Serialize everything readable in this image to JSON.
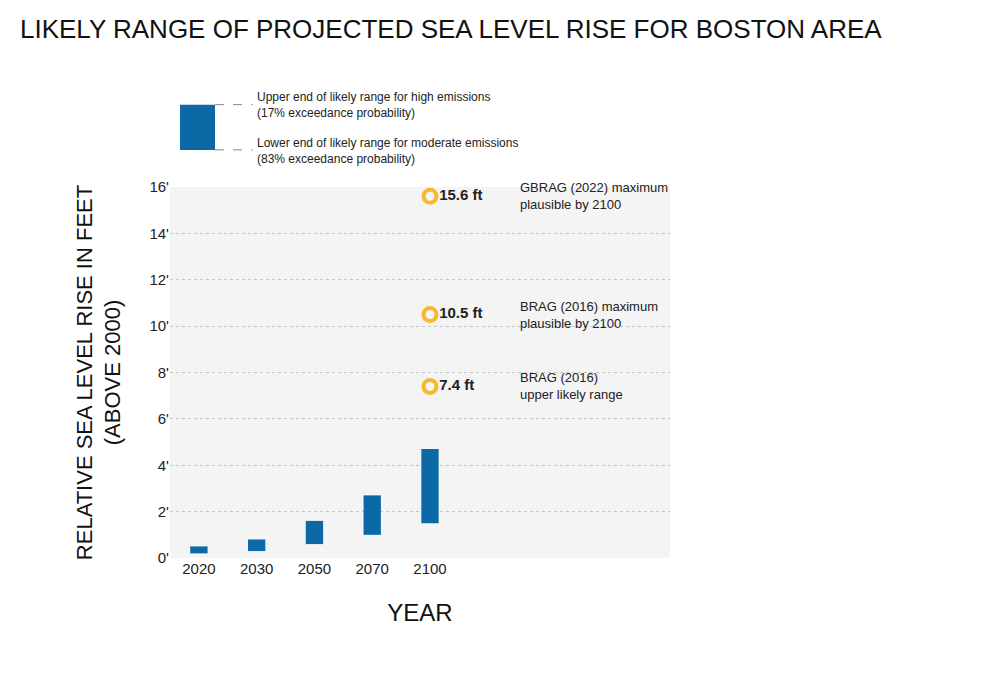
{
  "chart_data": {
    "type": "bar",
    "title": "LIKELY RANGE OF PROJECTED SEA LEVEL RISE FOR BOSTON AREA",
    "xlabel": "YEAR",
    "ylabel": "RELATIVE SEA LEVEL RISE IN FEET\n(ABOVE 2000)",
    "categories": [
      "2020",
      "2030",
      "2050",
      "2070",
      "2100"
    ],
    "color": "#0b6aa5",
    "series": [
      {
        "name": "Upper end of likely range for high emissions\n(17% exceedance probability)",
        "values": [
          0.5,
          0.8,
          1.6,
          2.7,
          4.7
        ]
      },
      {
        "name": "Lower end of likely range for moderate emissions\n(83% exceedance probability)",
        "values": [
          0.2,
          0.3,
          0.6,
          1.0,
          1.5
        ]
      }
    ],
    "points": {
      "type": "scatter",
      "marker": "circle-open",
      "color": "#f5b82e",
      "category": "2100",
      "values": [
        15.6,
        10.5,
        7.4
      ],
      "value_labels": [
        "15.6 ft",
        "10.5 ft",
        "7.4 ft"
      ],
      "labels": [
        "GBRAG (2022) maximum\nplausible by 2100",
        "BRAG (2016) maximum\nplausible by 2100",
        "BRAG (2016)\nupper likely range"
      ]
    },
    "ylim": [
      0,
      16
    ],
    "yticks": [
      {
        "value": 0,
        "label": "0'"
      },
      {
        "value": 2,
        "label": "2'"
      },
      {
        "value": 4,
        "label": "4'"
      },
      {
        "value": 6,
        "label": "6'"
      },
      {
        "value": 8,
        "label": "8'"
      },
      {
        "value": 10,
        "label": "10'"
      },
      {
        "value": 12,
        "label": "12'"
      },
      {
        "value": 14,
        "label": "14'"
      },
      {
        "value": 16,
        "label": "16'"
      }
    ],
    "grid": true,
    "data_labels": true
  }
}
